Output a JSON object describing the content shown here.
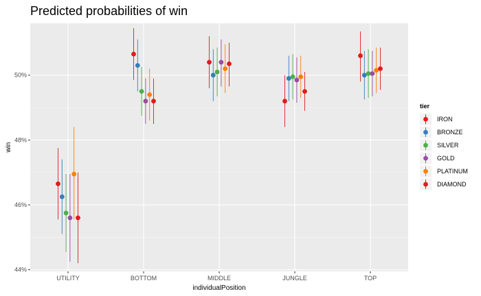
{
  "chart_data": {
    "type": "scatter",
    "title": "Predicted probabilities of win",
    "xlabel": "individualPosition",
    "ylabel": "win",
    "categories": [
      "UTILITY",
      "BOTTOM",
      "MIDDLE",
      "JUNGLE",
      "TOP"
    ],
    "y_ticks": [
      44,
      46,
      48,
      50
    ],
    "y_tick_labels": [
      "44%",
      "46%",
      "48%",
      "50%"
    ],
    "ylim": [
      43.95,
      51.6
    ],
    "grid": true,
    "legend": {
      "title": "tier",
      "placement": "right"
    },
    "series": [
      {
        "name": "IRON",
        "color": "#E41A1C",
        "values": [
          46.65,
          50.65,
          50.4,
          49.2,
          50.6
        ],
        "lower": [
          45.55,
          49.85,
          49.6,
          48.4,
          49.8
        ],
        "upper": [
          47.75,
          51.45,
          51.2,
          50.0,
          51.35
        ]
      },
      {
        "name": "BRONZE",
        "color": "#377EB8",
        "values": [
          46.25,
          50.3,
          50.0,
          49.9,
          50.0
        ],
        "lower": [
          45.1,
          49.5,
          49.2,
          49.2,
          49.25
        ],
        "upper": [
          47.4,
          51.1,
          50.8,
          50.6,
          50.75
        ]
      },
      {
        "name": "SILVER",
        "color": "#4DAF4A",
        "values": [
          45.75,
          49.5,
          50.1,
          49.95,
          50.05
        ],
        "lower": [
          44.55,
          48.75,
          49.35,
          49.25,
          49.3
        ],
        "upper": [
          46.95,
          50.25,
          50.85,
          50.65,
          50.8
        ]
      },
      {
        "name": "GOLD",
        "color": "#984EA3",
        "values": [
          45.6,
          49.2,
          50.4,
          49.85,
          50.05
        ],
        "lower": [
          44.25,
          48.5,
          49.65,
          49.15,
          49.35
        ],
        "upper": [
          46.95,
          49.9,
          51.1,
          50.55,
          50.75
        ]
      },
      {
        "name": "PLATINUM",
        "color": "#FF7F00",
        "values": [
          46.95,
          49.4,
          50.2,
          49.95,
          50.15
        ],
        "lower": [
          45.55,
          48.6,
          49.45,
          49.3,
          49.45
        ],
        "upper": [
          48.4,
          50.2,
          50.95,
          50.6,
          50.85
        ]
      },
      {
        "name": "DIAMOND",
        "color": "#E41A1C",
        "values": [
          45.6,
          49.2,
          50.35,
          49.5,
          50.2
        ],
        "lower": [
          44.2,
          48.5,
          49.65,
          48.9,
          49.55
        ],
        "upper": [
          47.0,
          49.9,
          51.0,
          50.1,
          50.85
        ]
      }
    ]
  }
}
